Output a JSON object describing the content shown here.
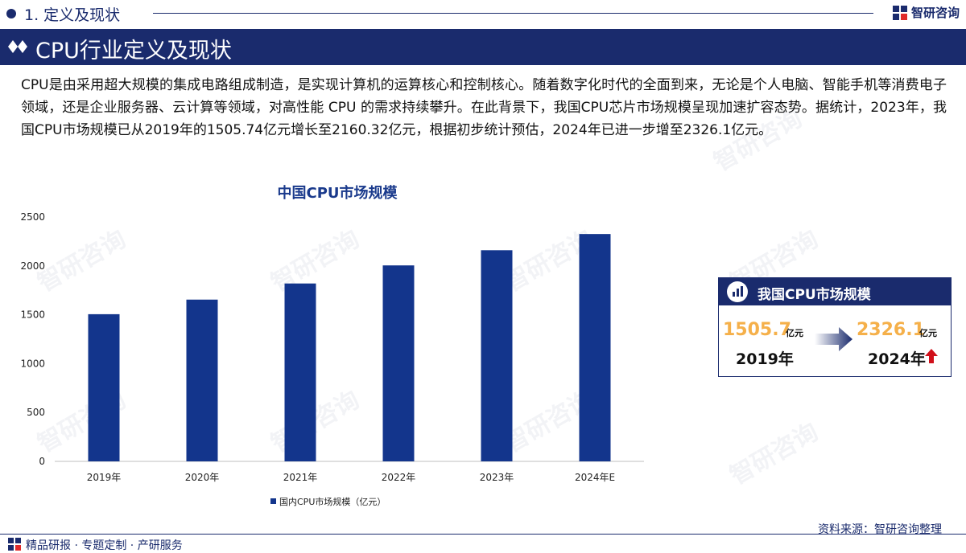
{
  "header": {
    "section_title": "1. 定义及现状",
    "brand": "智研咨询"
  },
  "banner": {
    "title": "CPU行业定义及现状"
  },
  "paragraph": "CPU是由采用超大规模的集成电路组成制造，是实现计算机的运算核心和控制核心。随着数字化时代的全面到来，无论是个人电脑、智能手机等消费电子领域，还是企业服务器、云计算等领域，对高性能 CPU 的需求持续攀升。在此背景下，我国CPU芯片市场规模呈现加速扩容态势。据统计，2023年，我国CPU市场规模已从2019年的1505.74亿元增长至2160.32亿元，根据初步统计预估，2024年已进一步增至2326.1亿元。",
  "chart_data": {
    "type": "bar",
    "title": "中国CPU市场规模",
    "categories": [
      "2019年",
      "2020年",
      "2021年",
      "2022年",
      "2023年",
      "2024年E"
    ],
    "series": [
      {
        "name": "国内CPU市场规模（亿元）",
        "values": [
          1505.74,
          1655,
          1820,
          2005,
          2160.32,
          2326.1
        ]
      }
    ],
    "ylim": [
      0,
      2500
    ],
    "yticks": [
      0,
      500,
      1000,
      1500,
      2000,
      2500
    ],
    "legend_position": "bottom",
    "grid": false,
    "bar_color": "#13358c"
  },
  "summary": {
    "title": "我国CPU市场规模",
    "left": {
      "value": "1505.7",
      "unit": "亿元",
      "year": "2019年"
    },
    "right": {
      "value": "2326.1",
      "unit": "亿元",
      "year": "2024年"
    }
  },
  "footer": {
    "source": "资料来源：智研咨询整理",
    "tagline": "精品研报 · 专题定制 · 产研服务"
  },
  "watermark": "智研咨询",
  "colors": {
    "primary": "#1a2b6d",
    "accent": "#f5b04a",
    "up": "#d0101a"
  }
}
